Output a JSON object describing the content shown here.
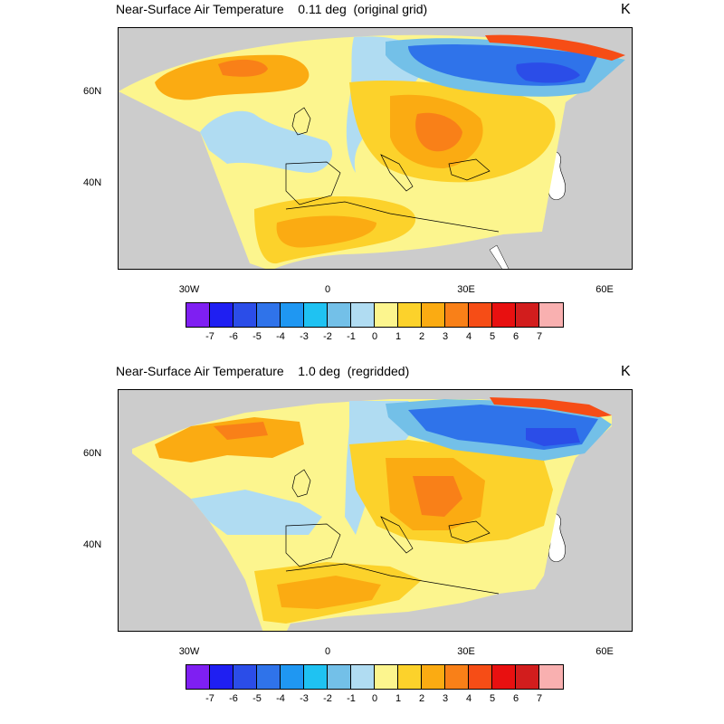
{
  "panels": [
    {
      "title": "Near-Surface Air Temperature    0.11 deg  (original grid)",
      "unit": "K",
      "variant": "fine"
    },
    {
      "title": "Near-Surface Air Temperature    1.0 deg  (regridded)",
      "unit": "K",
      "variant": "coarse"
    }
  ],
  "axes": {
    "x_ticks": [
      "30W",
      "0",
      "30E",
      "60E"
    ],
    "y_ticks": [
      "60N",
      "40N"
    ]
  },
  "colorbar": {
    "labels": [
      "-7",
      "-6",
      "-5",
      "-4",
      "-3",
      "-2",
      "-1",
      "0",
      "1",
      "2",
      "3",
      "4",
      "5",
      "6",
      "7"
    ],
    "colors": [
      "#7f1ff2",
      "#1f1ff2",
      "#2b4de8",
      "#2f73ea",
      "#1f97f2",
      "#1fc2f2",
      "#73c0e8",
      "#b0dcf2",
      "#fcf58e",
      "#fcd22b",
      "#fbab12",
      "#f98018",
      "#f64d16",
      "#e81010",
      "#d21d1d",
      "#f9b0b0"
    ]
  },
  "map": {
    "land_color": "#cccccc",
    "ocean_color": "#ffffff",
    "domain_base_color": "#fcf58e"
  }
}
